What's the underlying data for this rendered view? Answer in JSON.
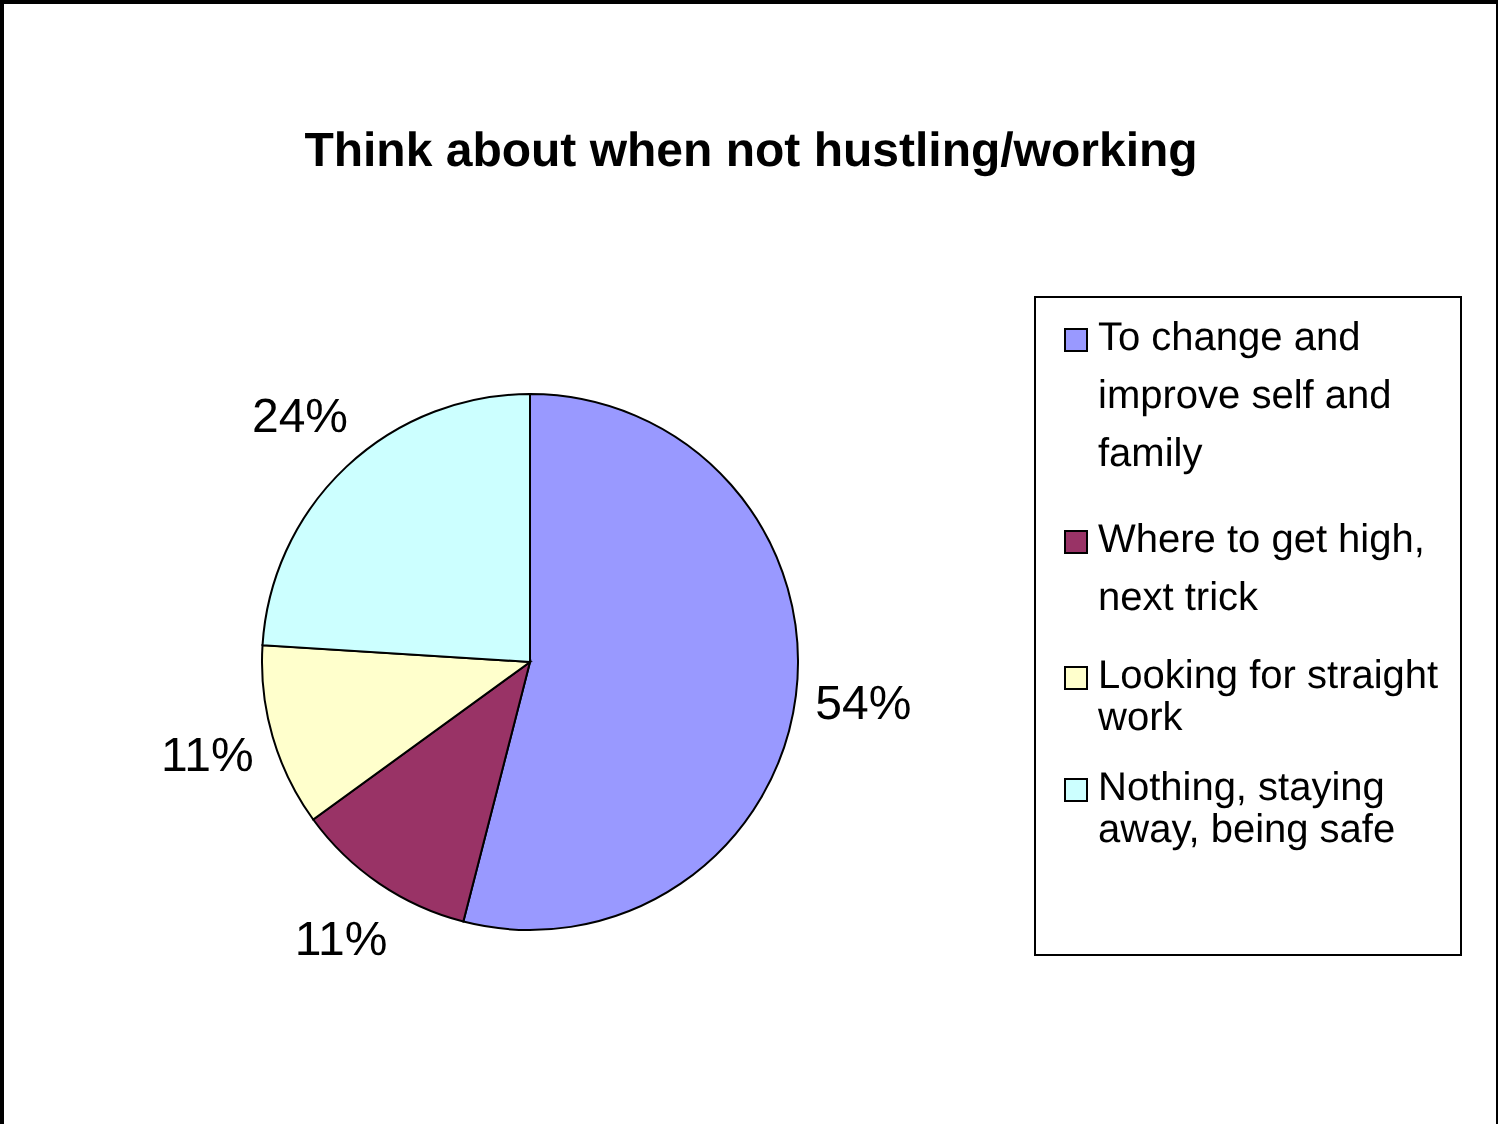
{
  "chart_data": {
    "type": "pie",
    "title": "Think about when not hustling/working",
    "categories": [
      "To change and improve self and family",
      "Where to get high, next trick",
      "Looking for straight work",
      "Nothing, staying away, being safe"
    ],
    "values": [
      54,
      11,
      11,
      24
    ],
    "colors": [
      "#9999ff",
      "#993366",
      "#ffffcc",
      "#ccffff"
    ],
    "value_labels": [
      "54%",
      "11%",
      "11%",
      "24%"
    ],
    "legend": "right"
  }
}
